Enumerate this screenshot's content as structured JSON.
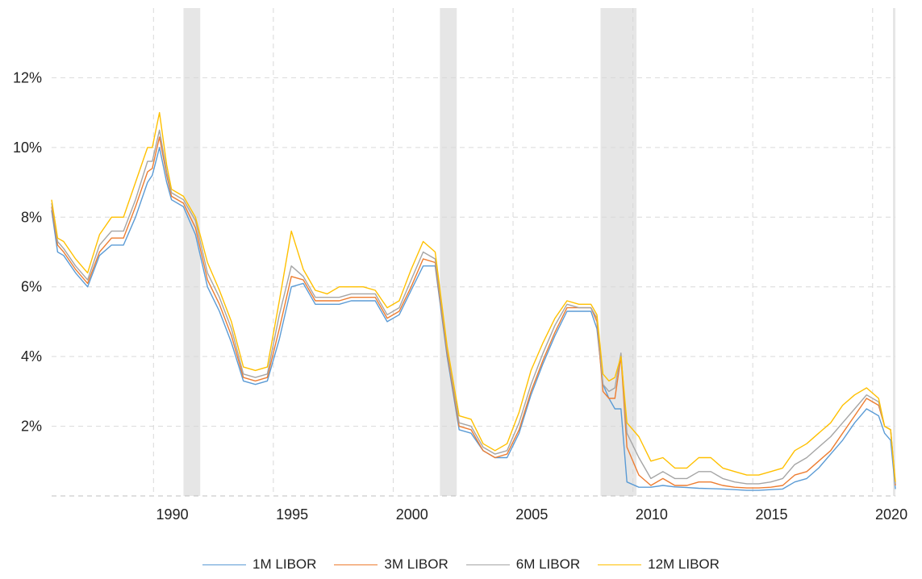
{
  "chart_data": {
    "type": "line",
    "title": "",
    "xlabel": "",
    "ylabel": "",
    "xlim": [
      1985.0,
      2020.2
    ],
    "ylim": [
      0,
      14
    ],
    "y_ticks": [
      {
        "value": 2,
        "label": "2%"
      },
      {
        "value": 4,
        "label": "4%"
      },
      {
        "value": 6,
        "label": "6%"
      },
      {
        "value": 8,
        "label": "8%"
      },
      {
        "value": 10,
        "label": "10%"
      },
      {
        "value": 12,
        "label": "12%"
      }
    ],
    "x_ticks": [
      {
        "value": 1990,
        "label": "1990"
      },
      {
        "value": 1995,
        "label": "1995"
      },
      {
        "value": 2000,
        "label": "2000"
      },
      {
        "value": 2005,
        "label": "2005"
      },
      {
        "value": 2010,
        "label": "2010"
      },
      {
        "value": 2015,
        "label": "2015"
      },
      {
        "value": 2020,
        "label": "2020"
      }
    ],
    "recessions": [
      [
        1990.5,
        1991.2
      ],
      [
        2001.2,
        2001.9
      ],
      [
        2007.9,
        2009.4
      ],
      [
        2020.1,
        2020.3
      ]
    ],
    "grid": true,
    "legend_position": "bottom",
    "x": [
      1985.0,
      1985.25,
      1985.5,
      1986.0,
      1986.5,
      1987.0,
      1987.5,
      1988.0,
      1988.5,
      1989.0,
      1989.2,
      1989.5,
      1989.8,
      1990.0,
      1990.5,
      1991.0,
      1991.5,
      1992.0,
      1992.5,
      1993.0,
      1993.5,
      1994.0,
      1994.5,
      1995.0,
      1995.5,
      1996.0,
      1996.5,
      1997.0,
      1997.5,
      1998.0,
      1998.5,
      1999.0,
      1999.5,
      2000.0,
      2000.5,
      2001.0,
      2001.5,
      2002.0,
      2002.5,
      2003.0,
      2003.5,
      2004.0,
      2004.5,
      2005.0,
      2005.5,
      2006.0,
      2006.5,
      2007.0,
      2007.5,
      2007.75,
      2008.0,
      2008.25,
      2008.5,
      2008.75,
      2009.0,
      2009.5,
      2010.0,
      2010.5,
      2011.0,
      2011.5,
      2012.0,
      2012.5,
      2013.0,
      2013.5,
      2014.0,
      2014.5,
      2015.0,
      2015.5,
      2016.0,
      2016.5,
      2017.0,
      2017.5,
      2018.0,
      2018.5,
      2019.0,
      2019.5,
      2019.75,
      2020.0,
      2020.2
    ],
    "series": [
      {
        "name": "1M LIBOR",
        "color": "#5b9bd5",
        "values": [
          8.2,
          7.0,
          6.9,
          6.4,
          6.0,
          6.9,
          7.2,
          7.2,
          8.0,
          9.0,
          9.2,
          10.0,
          9.0,
          8.5,
          8.3,
          7.5,
          6.0,
          5.3,
          4.4,
          3.3,
          3.2,
          3.3,
          4.5,
          6.0,
          6.1,
          5.5,
          5.5,
          5.5,
          5.6,
          5.6,
          5.6,
          5.0,
          5.2,
          5.9,
          6.6,
          6.6,
          4.0,
          1.9,
          1.8,
          1.3,
          1.1,
          1.1,
          1.8,
          2.9,
          3.8,
          4.6,
          5.3,
          5.3,
          5.3,
          4.8,
          3.2,
          2.8,
          2.5,
          2.5,
          0.4,
          0.25,
          0.25,
          0.3,
          0.26,
          0.24,
          0.22,
          0.21,
          0.2,
          0.18,
          0.16,
          0.16,
          0.18,
          0.2,
          0.4,
          0.5,
          0.8,
          1.2,
          1.6,
          2.1,
          2.5,
          2.3,
          1.8,
          1.6,
          0.2
        ]
      },
      {
        "name": "3M LIBOR",
        "color": "#ed7d31",
        "values": [
          8.3,
          7.2,
          7.0,
          6.5,
          6.1,
          7.0,
          7.4,
          7.4,
          8.3,
          9.3,
          9.4,
          10.3,
          9.2,
          8.6,
          8.4,
          7.7,
          6.2,
          5.5,
          4.6,
          3.4,
          3.3,
          3.4,
          4.8,
          6.3,
          6.2,
          5.6,
          5.6,
          5.6,
          5.7,
          5.7,
          5.7,
          5.1,
          5.3,
          6.0,
          6.8,
          6.7,
          4.1,
          2.0,
          1.9,
          1.3,
          1.1,
          1.2,
          1.9,
          3.0,
          3.9,
          4.7,
          5.4,
          5.4,
          5.4,
          5.0,
          3.0,
          2.8,
          2.8,
          4.0,
          1.4,
          0.6,
          0.3,
          0.5,
          0.3,
          0.3,
          0.4,
          0.4,
          0.3,
          0.25,
          0.23,
          0.23,
          0.25,
          0.3,
          0.6,
          0.7,
          1.0,
          1.3,
          1.8,
          2.3,
          2.8,
          2.6,
          2.0,
          1.9,
          0.3
        ]
      },
      {
        "name": "6M LIBOR",
        "color": "#a5a5a5",
        "values": [
          8.4,
          7.3,
          7.1,
          6.6,
          6.2,
          7.2,
          7.6,
          7.6,
          8.5,
          9.6,
          9.6,
          10.5,
          9.3,
          8.7,
          8.5,
          7.9,
          6.4,
          5.7,
          4.8,
          3.5,
          3.4,
          3.5,
          5.2,
          6.6,
          6.3,
          5.7,
          5.7,
          5.7,
          5.8,
          5.8,
          5.8,
          5.2,
          5.4,
          6.2,
          7.0,
          6.8,
          4.2,
          2.1,
          2.0,
          1.4,
          1.2,
          1.3,
          2.1,
          3.2,
          4.1,
          4.9,
          5.5,
          5.4,
          5.4,
          5.1,
          3.2,
          3.0,
          3.1,
          4.1,
          1.8,
          1.1,
          0.5,
          0.7,
          0.5,
          0.5,
          0.7,
          0.7,
          0.5,
          0.4,
          0.35,
          0.35,
          0.4,
          0.5,
          0.9,
          1.1,
          1.4,
          1.7,
          2.1,
          2.5,
          2.9,
          2.7,
          2.0,
          1.9,
          0.35
        ]
      },
      {
        "name": "12M LIBOR",
        "color": "#ffc000",
        "values": [
          8.5,
          7.4,
          7.3,
          6.8,
          6.4,
          7.5,
          8.0,
          8.0,
          9.0,
          10.0,
          10.0,
          11.0,
          9.5,
          8.8,
          8.6,
          8.0,
          6.7,
          5.9,
          5.0,
          3.7,
          3.6,
          3.7,
          5.6,
          7.6,
          6.5,
          5.9,
          5.8,
          6.0,
          6.0,
          6.0,
          5.9,
          5.4,
          5.6,
          6.5,
          7.3,
          7.0,
          4.3,
          2.3,
          2.2,
          1.5,
          1.3,
          1.5,
          2.4,
          3.6,
          4.4,
          5.1,
          5.6,
          5.5,
          5.5,
          5.2,
          3.5,
          3.3,
          3.4,
          4.0,
          2.1,
          1.7,
          1.0,
          1.1,
          0.8,
          0.8,
          1.1,
          1.1,
          0.8,
          0.7,
          0.6,
          0.6,
          0.7,
          0.8,
          1.3,
          1.5,
          1.8,
          2.1,
          2.6,
          2.9,
          3.1,
          2.8,
          2.0,
          1.9,
          0.4
        ]
      }
    ]
  }
}
